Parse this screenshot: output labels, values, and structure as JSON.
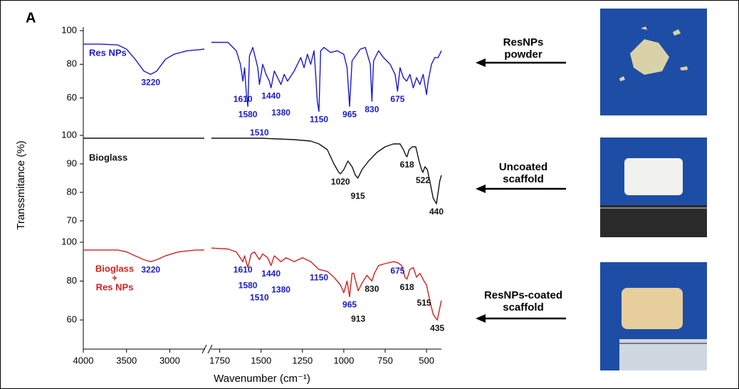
{
  "panel_label": "A",
  "chart_data": [
    {
      "type": "line",
      "xlim": [
        4000,
        410
      ],
      "x_break": [
        2600,
        1800
      ],
      "ylim": [
        42,
        100
      ],
      "yticks": [
        60,
        80,
        100
      ],
      "series": [
        {
          "name": "Res NPs",
          "color": "#1a1acc",
          "x": [
            4000,
            3800,
            3600,
            3500,
            3400,
            3300,
            3220,
            3150,
            3050,
            2950,
            2800,
            2700,
            2600,
            1800,
            1700,
            1650,
            1625,
            1610,
            1600,
            1590,
            1580,
            1570,
            1550,
            1520,
            1510,
            1490,
            1470,
            1450,
            1440,
            1420,
            1400,
            1380,
            1360,
            1340,
            1300,
            1280,
            1260,
            1240,
            1220,
            1200,
            1180,
            1170,
            1160,
            1150,
            1140,
            1120,
            1080,
            1040,
            1000,
            980,
            965,
            950,
            900,
            870,
            840,
            830,
            820,
            790,
            760,
            720,
            700,
            690,
            675,
            660,
            640,
            620,
            600,
            580,
            560,
            540,
            520,
            500,
            490,
            470,
            450,
            430,
            420,
            410
          ],
          "values": [
            92,
            92,
            91.5,
            89,
            83,
            76,
            74,
            76,
            83,
            86,
            88,
            88.5,
            89,
            93,
            93,
            88,
            80,
            70,
            78,
            64,
            55,
            85,
            90,
            78,
            68,
            80,
            74,
            70,
            66,
            76,
            72,
            68,
            74,
            70,
            76,
            80,
            84,
            78,
            86,
            80,
            88,
            74,
            58,
            52,
            88,
            90,
            87,
            88,
            86,
            78,
            55,
            82,
            89,
            90,
            80,
            58,
            82,
            88,
            84,
            80,
            76,
            74,
            64,
            78,
            72,
            70,
            74,
            66,
            72,
            68,
            74,
            62,
            70,
            80,
            84,
            84,
            86,
            88
          ]
        }
      ],
      "annotations": [
        {
          "x": 3220,
          "label": "3220",
          "color": "#1a1acc"
        },
        {
          "x": 1610,
          "label": "1610",
          "color": "#1a1acc"
        },
        {
          "x": 1580,
          "label": "1580",
          "color": "#1a1acc"
        },
        {
          "x": 1510,
          "label": "1510",
          "color": "#1a1acc"
        },
        {
          "x": 1440,
          "label": "1440",
          "color": "#1a1acc"
        },
        {
          "x": 1380,
          "label": "1380",
          "color": "#1a1acc"
        },
        {
          "x": 1150,
          "label": "1150",
          "color": "#1a1acc"
        },
        {
          "x": 965,
          "label": "965",
          "color": "#1a1acc"
        },
        {
          "x": 830,
          "label": "830",
          "color": "#1a1acc"
        },
        {
          "x": 675,
          "label": "675",
          "color": "#1a1acc"
        }
      ]
    },
    {
      "type": "line",
      "xlim": [
        4000,
        410
      ],
      "x_break": [
        2600,
        1800
      ],
      "ylim": [
        65,
        100
      ],
      "yticks": [
        70,
        80,
        90,
        100
      ],
      "ylabel": "Transsmitance (%)",
      "series": [
        {
          "name": "Bioglass",
          "color": "#111111",
          "x": [
            4000,
            3500,
            3000,
            2600,
            1800,
            1500,
            1300,
            1200,
            1150,
            1100,
            1060,
            1030,
            1020,
            1000,
            975,
            950,
            930,
            915,
            890,
            850,
            800,
            750,
            700,
            660,
            640,
            625,
            618,
            605,
            585,
            565,
            545,
            530,
            522,
            510,
            495,
            480,
            460,
            440,
            430,
            420,
            410
          ],
          "values": [
            99,
            99,
            99,
            99,
            99,
            99,
            98.5,
            98,
            97,
            95,
            90,
            87,
            86.5,
            88,
            91,
            89,
            86,
            85,
            88,
            91,
            94,
            96,
            97,
            97,
            95,
            93,
            92.5,
            95,
            96,
            96,
            91,
            88,
            87,
            89,
            88,
            84,
            78,
            76,
            80,
            84,
            86
          ]
        }
      ],
      "annotations": [
        {
          "x": 1020,
          "label": "1020",
          "color": "#111111"
        },
        {
          "x": 915,
          "label": "915",
          "color": "#111111"
        },
        {
          "x": 618,
          "label": "618",
          "color": "#111111"
        },
        {
          "x": 522,
          "label": "522",
          "color": "#111111"
        },
        {
          "x": 440,
          "label": "440",
          "color": "#111111"
        }
      ]
    },
    {
      "type": "line",
      "xlim": [
        4000,
        410
      ],
      "x_break": [
        2600,
        1800
      ],
      "ylim": [
        45,
        100
      ],
      "yticks": [
        60,
        80,
        100
      ],
      "xticks": [
        4000,
        3500,
        3000,
        1750,
        1500,
        1250,
        1000,
        750,
        500
      ],
      "xlabel": "Wavenumber (cm⁻¹)",
      "series": [
        {
          "label_lines": [
            "Bioglass",
            "+",
            "Res NPs"
          ],
          "color": "#d42020",
          "x": [
            4000,
            3600,
            3500,
            3400,
            3300,
            3220,
            3150,
            3050,
            2900,
            2700,
            2600,
            1800,
            1700,
            1650,
            1610,
            1600,
            1580,
            1560,
            1540,
            1510,
            1490,
            1460,
            1440,
            1420,
            1380,
            1350,
            1300,
            1250,
            1200,
            1150,
            1100,
            1060,
            1040,
            1020,
            1000,
            980,
            965,
            950,
            940,
            913,
            890,
            860,
            830,
            815,
            790,
            750,
            700,
            675,
            650,
            630,
            618,
            600,
            580,
            560,
            540,
            515,
            500,
            480,
            460,
            445,
            435,
            425,
            410
          ],
          "values": [
            96,
            96,
            95,
            93,
            91,
            90,
            91,
            93,
            95,
            96,
            96,
            97,
            96.5,
            95,
            90,
            93,
            87,
            94,
            95,
            91,
            94,
            92,
            88,
            93,
            90,
            92,
            90,
            92,
            90,
            86,
            85,
            82,
            80,
            78,
            74,
            80,
            72,
            84,
            84,
            75,
            79,
            83,
            80,
            84,
            88,
            89,
            90,
            89.5,
            88,
            82,
            81,
            86,
            87,
            82,
            84,
            80,
            78,
            70,
            63,
            61,
            60,
            64,
            70
          ]
        }
      ],
      "annotations": [
        {
          "x": 3220,
          "label": "3220",
          "color": "#1a1acc"
        },
        {
          "x": 1610,
          "label": "1610",
          "color": "#1a1acc"
        },
        {
          "x": 1580,
          "label": "1580",
          "color": "#1a1acc"
        },
        {
          "x": 1510,
          "label": "1510",
          "color": "#1a1acc"
        },
        {
          "x": 1440,
          "label": "1440",
          "color": "#1a1acc"
        },
        {
          "x": 1380,
          "label": "1380",
          "color": "#1a1acc"
        },
        {
          "x": 1150,
          "label": "1150",
          "color": "#1a1acc"
        },
        {
          "x": 965,
          "label": "965",
          "color": "#1a1acc"
        },
        {
          "x": 913,
          "label": "913",
          "color": "#111111"
        },
        {
          "x": 830,
          "label": "830",
          "color": "#111111"
        },
        {
          "x": 675,
          "label": "675",
          "color": "#1a1acc"
        },
        {
          "x": 618,
          "label": "618",
          "color": "#111111"
        },
        {
          "x": 515,
          "label": "515",
          "color": "#111111"
        },
        {
          "x": 435,
          "label": "435",
          "color": "#111111"
        }
      ]
    }
  ],
  "photos": [
    {
      "lines": [
        "ResNPs",
        "powder"
      ]
    },
    {
      "lines": [
        "Uncoated",
        "scaffold"
      ]
    },
    {
      "lines": [
        "ResNPs-coated",
        "scaffold"
      ]
    }
  ]
}
